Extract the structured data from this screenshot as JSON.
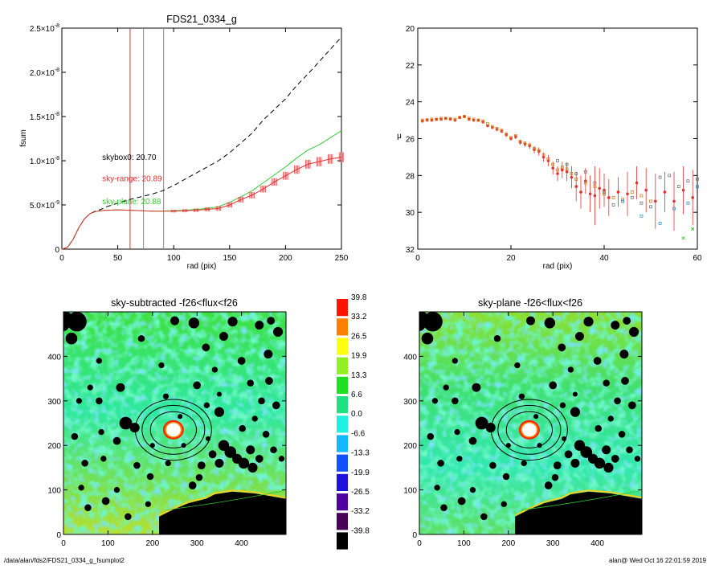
{
  "chart_data": [
    {
      "type": "line",
      "title": "FDS21_0334_g",
      "xlabel": "rad (pix)",
      "ylabel": "fsum",
      "xlim": [
        0,
        250
      ],
      "ylim": [
        0,
        2.5e-08
      ],
      "xticks": [
        "0",
        "50",
        "100",
        "150",
        "200",
        "250"
      ],
      "yticks": [
        {
          "v": 0,
          "m": "0",
          "e": ""
        },
        {
          "v": 5e-09,
          "m": "5.0×10",
          "e": "-9"
        },
        {
          "v": 1e-08,
          "m": "1.0×10",
          "e": "-8"
        },
        {
          "v": 1.5e-08,
          "m": "1.5×10",
          "e": "-8"
        },
        {
          "v": 2e-08,
          "m": "2.0×10",
          "e": "-8"
        },
        {
          "v": 2.5e-08,
          "m": "2.5×10",
          "e": "-8"
        }
      ],
      "vlines": [
        {
          "x": 61,
          "color": "#e53030"
        },
        {
          "x": 73,
          "color": "#888888"
        },
        {
          "x": 91,
          "color": "#888888"
        }
      ],
      "annotations": [
        {
          "text": "skybox0: 20.70",
          "color": "#000000",
          "x": 36,
          "y": 1.01e-08
        },
        {
          "text": "sky-range: 20.89",
          "color": "#e53030",
          "x": 36,
          "y": 7.7e-09
        },
        {
          "text": "sky-plane: 20.88",
          "color": "#33cc33",
          "x": 36,
          "y": 5.1e-09
        }
      ],
      "series": [
        {
          "style": "dashed",
          "color": "#000000",
          "x": [
            0,
            5,
            10,
            15,
            20,
            25,
            30,
            35,
            40,
            50,
            60,
            70,
            80,
            90,
            100,
            110,
            120,
            130,
            140,
            150,
            160,
            170,
            180,
            190,
            200,
            210,
            220,
            230,
            240,
            250
          ],
          "y": [
            0,
            2e-10,
            1.1e-09,
            2.4e-09,
            3.4e-09,
            4e-09,
            4.3e-09,
            4.5e-09,
            4.8e-09,
            5.2e-09,
            5.6e-09,
            5.9e-09,
            6.2e-09,
            6.6e-09,
            7.2e-09,
            7.9e-09,
            8.6e-09,
            9.3e-09,
            1e-08,
            1.09e-08,
            1.2e-08,
            1.31e-08,
            1.46e-08,
            1.58e-08,
            1.7e-08,
            1.85e-08,
            1.98e-08,
            2.12e-08,
            2.26e-08,
            2.4e-08
          ]
        },
        {
          "style": "solid",
          "color": "#33cc33",
          "x": [
            0,
            5,
            10,
            15,
            20,
            25,
            30,
            35,
            40,
            50,
            60,
            70,
            80,
            90,
            100,
            110,
            120,
            130,
            140,
            150,
            160,
            170,
            180,
            190,
            200,
            210,
            220,
            230,
            240,
            250
          ],
          "y": [
            0,
            2e-10,
            1.1e-09,
            2.4e-09,
            3.4e-09,
            4e-09,
            4.25e-09,
            4.35e-09,
            4.4e-09,
            4.45e-09,
            4.4e-09,
            4.35e-09,
            4.3e-09,
            4.3e-09,
            4.35e-09,
            4.4e-09,
            4.5e-09,
            4.6e-09,
            4.8e-09,
            5.3e-09,
            5.9e-09,
            6.6e-09,
            7.5e-09,
            8.4e-09,
            9.3e-09,
            1.03e-08,
            1.12e-08,
            1.18e-08,
            1.26e-08,
            1.34e-08
          ]
        },
        {
          "style": "errorbar",
          "color": "#e53030",
          "x": [
            0,
            5,
            10,
            15,
            20,
            25,
            30,
            35,
            40,
            50,
            60,
            70,
            80,
            90,
            100,
            110,
            120,
            130,
            140,
            150,
            160,
            170,
            180,
            190,
            200,
            210,
            220,
            230,
            240,
            250
          ],
          "y": [
            0,
            2e-10,
            1.1e-09,
            2.4e-09,
            3.4e-09,
            4e-09,
            4.25e-09,
            4.35e-09,
            4.4e-09,
            4.45e-09,
            4.4e-09,
            4.35e-09,
            4.3e-09,
            4.3e-09,
            4.3e-09,
            4.35e-09,
            4.4e-09,
            4.5e-09,
            4.6e-09,
            5e-09,
            5.6e-09,
            6.1e-09,
            6.8e-09,
            7.6e-09,
            8.3e-09,
            9e-09,
            9.6e-09,
            9.9e-09,
            1.02e-08,
            1.04e-08
          ],
          "err": [
            0,
            0,
            0,
            0,
            0,
            0,
            0,
            0,
            0,
            0,
            0,
            0,
            0,
            0,
            1.5e-10,
            1.8e-10,
            2e-10,
            2.3e-10,
            2.6e-10,
            3e-10,
            3.3e-10,
            3.6e-10,
            3.9e-10,
            4.2e-10,
            4.5e-10,
            4.8e-10,
            5e-10,
            5.2e-10,
            5.4e-10,
            5.6e-10
          ]
        }
      ]
    },
    {
      "type": "scatter",
      "xlabel": "rad (pix)",
      "ylabel": "μ",
      "xlim": [
        0,
        60
      ],
      "ylim": [
        32,
        20
      ],
      "xticks": [
        "0",
        "20",
        "40",
        "60"
      ],
      "yticks": [
        "20",
        "22",
        "24",
        "26",
        "28",
        "30",
        "32"
      ],
      "series": [
        {
          "color": "#e53030",
          "marker": "o",
          "x": [
            1,
            2,
            3,
            4,
            5,
            6,
            7,
            8,
            9,
            10,
            11,
            12,
            13,
            14,
            15,
            16,
            17,
            18,
            19,
            20,
            21,
            22,
            23,
            24,
            25,
            26,
            27,
            28,
            29,
            30,
            31,
            32,
            33,
            34,
            35,
            36,
            37,
            38,
            39,
            40,
            41,
            43,
            45,
            47,
            49,
            51,
            53,
            55,
            57,
            59
          ],
          "y": [
            25.05,
            25.0,
            25.0,
            24.95,
            24.95,
            24.9,
            24.95,
            25.0,
            24.85,
            24.8,
            24.95,
            25.0,
            25.0,
            25.1,
            25.3,
            25.4,
            25.5,
            25.6,
            25.8,
            26.0,
            25.9,
            26.2,
            26.3,
            26.4,
            26.6,
            26.7,
            27.0,
            27.2,
            27.6,
            27.9,
            27.7,
            27.8,
            28.1,
            28.6,
            28.9,
            28.3,
            29.0,
            29.1,
            28.7,
            28.8,
            29.2,
            28.9,
            29.0,
            28.4,
            28.8,
            29.4,
            28.9,
            29.4,
            28.8,
            29.2
          ],
          "err": [
            0.05,
            0.05,
            0.05,
            0.05,
            0.05,
            0.05,
            0.05,
            0.05,
            0.05,
            0.05,
            0.05,
            0.05,
            0.05,
            0.06,
            0.06,
            0.07,
            0.08,
            0.09,
            0.1,
            0.1,
            0.12,
            0.14,
            0.15,
            0.17,
            0.2,
            0.22,
            0.25,
            0.3,
            0.35,
            0.4,
            0.45,
            0.5,
            0.6,
            0.8,
            0.9,
            0.7,
            1.0,
            1.6,
            1.1,
            0.9,
            1.0,
            0.8,
            1.2,
            0.9,
            1.2,
            1.5,
            1.1,
            1.6,
            1.3,
            1.5
          ]
        },
        {
          "color": "#d08020",
          "marker": "s",
          "x": [
            1,
            2,
            3,
            4,
            5,
            6,
            7,
            8,
            9,
            10,
            11,
            12,
            13,
            14,
            15,
            16,
            17,
            18,
            19,
            20,
            21,
            22,
            23,
            24,
            25,
            26,
            27,
            28,
            29,
            30,
            31,
            32,
            33,
            34,
            36,
            38,
            40,
            42,
            44,
            46,
            48,
            50
          ],
          "y": [
            25.0,
            24.98,
            24.95,
            24.95,
            24.9,
            24.9,
            24.92,
            24.95,
            24.85,
            24.8,
            24.9,
            24.95,
            25.0,
            25.05,
            25.2,
            25.35,
            25.45,
            25.55,
            25.75,
            25.95,
            25.85,
            26.15,
            26.25,
            26.35,
            26.55,
            26.65,
            26.9,
            27.1,
            27.4,
            27.7,
            27.55,
            27.65,
            27.9,
            28.2,
            28.4,
            28.6,
            29.0,
            29.2,
            29.3,
            28.9,
            29.1,
            29.4
          ]
        },
        {
          "color": "#777777",
          "marker": "s",
          "x": [
            30,
            32,
            34,
            36,
            38,
            40,
            42,
            44,
            46,
            48,
            50,
            52,
            54,
            56,
            58,
            60
          ],
          "y": [
            27.2,
            27.4,
            27.9,
            27.8,
            28.4,
            28.9,
            29.6,
            29.4,
            29.2,
            29.5,
            29.7,
            28.1,
            28.0,
            28.6,
            28.3,
            28.2
          ]
        },
        {
          "color": "#3399cc",
          "marker": "s",
          "x": [
            44,
            48,
            52,
            55,
            58,
            60
          ],
          "y": [
            29.4,
            30.2,
            30.6,
            29.8,
            29.5,
            28.6
          ]
        },
        {
          "color": "#33cc33",
          "marker": "x",
          "x": [
            57,
            59
          ],
          "y": [
            31.4,
            30.9
          ]
        }
      ]
    },
    {
      "type": "heatmap",
      "title": "sky-subtracted -f26<flux<f26",
      "xlim": [
        0,
        500
      ],
      "ylim": [
        0,
        500
      ],
      "xticks": [
        "0",
        "100",
        "200",
        "300",
        "400"
      ],
      "yticks": [
        "0",
        "100",
        "200",
        "300",
        "400"
      ],
      "center": [
        247,
        235
      ]
    },
    {
      "type": "heatmap",
      "title": "sky-plane -f26<flux<f26",
      "xlim": [
        0,
        500
      ],
      "ylim": [
        0,
        500
      ],
      "xticks": [
        "0",
        "100",
        "200",
        "300",
        "400"
      ],
      "yticks": [
        "0",
        "100",
        "200",
        "300",
        "400"
      ],
      "center": [
        247,
        235
      ]
    }
  ],
  "colorbar": {
    "labels": [
      "39.8",
      "33.2",
      "26.5",
      "19.9",
      "13.3",
      "6.6",
      "0.0",
      "-6.6",
      "-13.3",
      "-19.9",
      "-26.5",
      "-33.2",
      "-39.8"
    ],
    "colors": [
      "#ff1400",
      "#ff8000",
      "#ffff10",
      "#90f020",
      "#20e020",
      "#20e080",
      "#20f0e0",
      "#10b8ff",
      "#1050ff",
      "#2010e0",
      "#5000a0",
      "#480058",
      "#000000"
    ]
  },
  "footer": {
    "path": "/data/alan/fds2/FDS21_0334_g_fsumplot2",
    "stamp": "alan@  Wed Oct 16 22:01:59 2019"
  }
}
